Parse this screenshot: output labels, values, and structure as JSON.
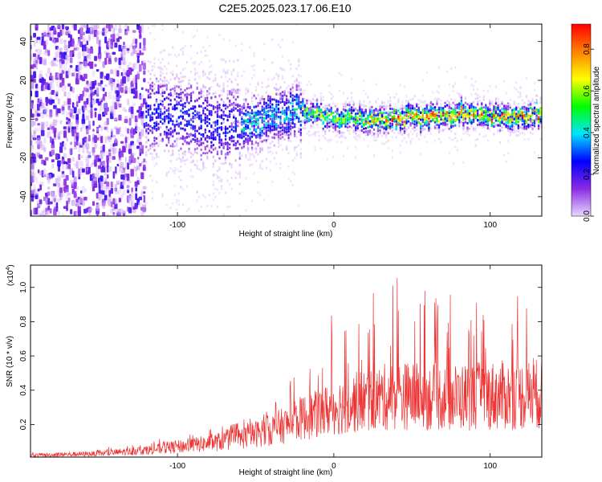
{
  "title": "C2E5.2025.023.17.06.E10",
  "chart_data": [
    {
      "type": "heatmap",
      "xlabel": "Height of straight line (km)",
      "ylabel": "Frequency (Hz)",
      "xlim": [
        -194,
        133
      ],
      "ylim": [
        -50,
        49
      ],
      "xticks": [
        -100,
        0,
        100
      ],
      "xtick_labels": [
        "-100",
        "0",
        "100"
      ],
      "yticks": [
        -40,
        -20,
        0,
        20,
        40
      ],
      "ytick_labels": [
        "-40",
        "-20",
        "0",
        "20",
        "40"
      ],
      "colorbar": {
        "label": "Normalized spectral amplitude",
        "range": [
          0,
          0.92
        ],
        "ticks": [
          0,
          0.2,
          0.4,
          0.6,
          0.8
        ],
        "tick_labels": [
          "0.0",
          "0.2",
          "0.4",
          "0.6",
          "0.8"
        ],
        "colormap": [
          "#e8d8ff",
          "#8a2be2",
          "#0000ff",
          "#00e5ff",
          "#00ff00",
          "#ffff00",
          "#ff8000",
          "#ff0000"
        ]
      },
      "ridge_frequency": {
        "x": [
          -120,
          -100,
          -80,
          -60,
          -40,
          -20,
          0,
          20,
          40,
          60,
          80,
          100,
          120,
          133
        ],
        "y": [
          3,
          2,
          -2,
          -5,
          2,
          4,
          1,
          -1,
          0,
          1,
          2,
          2,
          1,
          2
        ]
      },
      "grid": false
    },
    {
      "type": "line",
      "xlabel": "Height of straight line (km)",
      "ylabel": "SNR (10 * v/v)",
      "yscale_label": "(x10",
      "yscale_exp": "4",
      "xlim": [
        -194,
        133
      ],
      "ylim": [
        0.01,
        1.13
      ],
      "xticks": [
        -100,
        0,
        100
      ],
      "xtick_labels": [
        "-100",
        "0",
        "100"
      ],
      "yticks": [
        0.2,
        0.4,
        0.6,
        0.8,
        1.0
      ],
      "ytick_labels": [
        "0.2",
        "0.4",
        "0.6",
        "0.8",
        "1.0"
      ],
      "color": "#ee3333",
      "envelope": {
        "x": [
          -194,
          -150,
          -120,
          -100,
          -80,
          -60,
          -40,
          -30,
          -20,
          -10,
          0,
          20,
          40,
          60,
          80,
          100,
          120,
          133
        ],
        "y_base": [
          0.02,
          0.03,
          0.05,
          0.07,
          0.09,
          0.12,
          0.17,
          0.2,
          0.24,
          0.26,
          0.3,
          0.34,
          0.37,
          0.36,
          0.36,
          0.37,
          0.37,
          0.38
        ],
        "y_peak": [
          0.04,
          0.06,
          0.1,
          0.14,
          0.17,
          0.22,
          0.33,
          0.47,
          0.55,
          0.72,
          0.9,
          0.92,
          1.1,
          0.98,
          0.95,
          0.95,
          1.02,
          0.8
        ]
      },
      "grid": false
    }
  ]
}
